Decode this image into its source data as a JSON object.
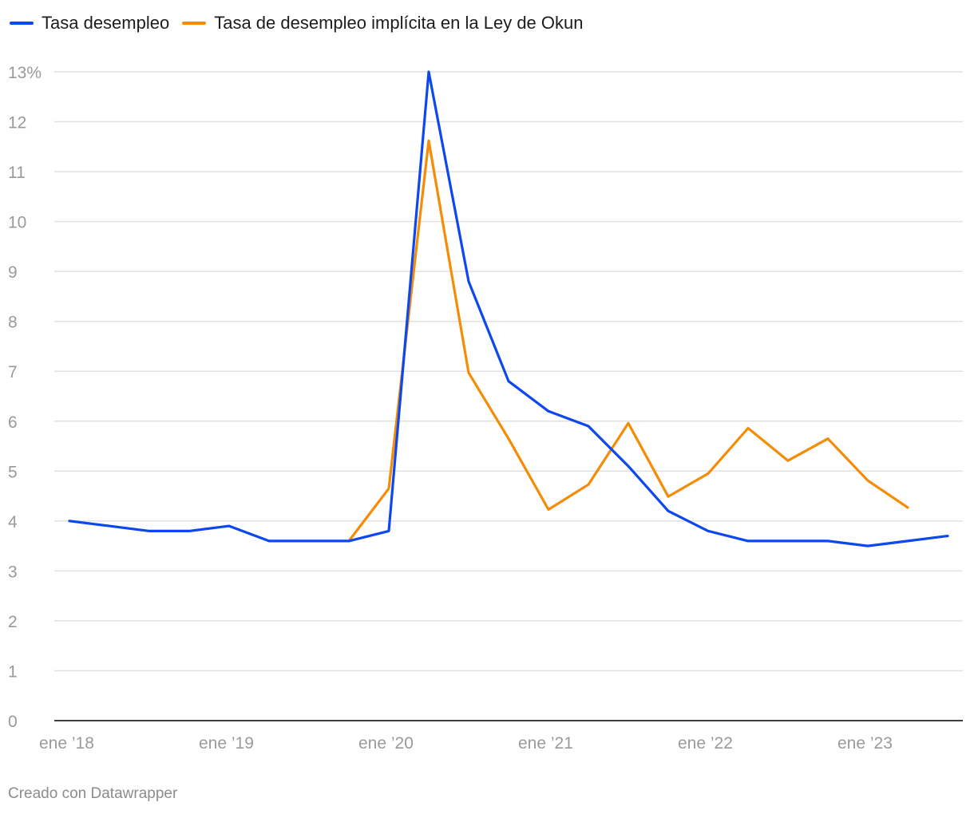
{
  "legend": [
    {
      "label": "Tasa desempleo",
      "color": "#0c47f0"
    },
    {
      "label": "Tasa de desempleo implícita en la Ley de Okun",
      "color": "#f48c06"
    }
  ],
  "footer": "Creado con Datawrapper",
  "chart_data": {
    "type": "line",
    "title": "",
    "xlabel": "",
    "ylabel": "",
    "ylim": [
      0,
      13
    ],
    "y_ticks": [
      0,
      1,
      2,
      3,
      4,
      5,
      6,
      7,
      8,
      9,
      10,
      11,
      12,
      13
    ],
    "y_tick_labels": [
      "0",
      "1",
      "2",
      "3",
      "4",
      "5",
      "6",
      "7",
      "8",
      "9",
      "10",
      "11",
      "12",
      "13%"
    ],
    "x_range": [
      "2018-01",
      "2023-07"
    ],
    "x_ticks": [
      "2018-01",
      "2019-01",
      "2020-01",
      "2021-01",
      "2022-01",
      "2023-01"
    ],
    "x_tick_labels": [
      "ene ’18",
      "ene ’19",
      "ene ’20",
      "ene ’21",
      "ene ’22",
      "ene ’23"
    ],
    "grid": true,
    "legend_position": "top-left",
    "series": [
      {
        "name": "Tasa desempleo",
        "color": "#0c47f0",
        "x": [
          "2018-01",
          "2018-04",
          "2018-07",
          "2018-10",
          "2019-01",
          "2019-04",
          "2019-07",
          "2019-10",
          "2020-01",
          "2020-04",
          "2020-07",
          "2020-10",
          "2021-01",
          "2021-04",
          "2021-07",
          "2021-10",
          "2022-01",
          "2022-04",
          "2022-07",
          "2022-10",
          "2023-01",
          "2023-04",
          "2023-07"
        ],
        "values": [
          4.0,
          3.9,
          3.8,
          3.8,
          3.9,
          3.6,
          3.6,
          3.6,
          3.8,
          13.0,
          8.8,
          6.8,
          6.2,
          5.9,
          5.1,
          4.2,
          3.8,
          3.6,
          3.6,
          3.6,
          3.5,
          3.6,
          3.7
        ]
      },
      {
        "name": "Tasa de desempleo implícita en la Ley de Okun",
        "color": "#f48c06",
        "x": [
          "2019-10",
          "2020-01",
          "2020-04",
          "2020-07",
          "2020-10",
          "2021-01",
          "2021-04",
          "2021-07",
          "2021-10",
          "2022-01",
          "2022-04",
          "2022-07",
          "2022-10",
          "2023-01",
          "2023-04"
        ],
        "values": [
          3.6,
          4.65,
          11.62,
          6.97,
          5.65,
          4.23,
          4.73,
          5.96,
          4.49,
          4.95,
          5.86,
          5.21,
          5.65,
          4.81,
          4.27
        ]
      }
    ]
  }
}
